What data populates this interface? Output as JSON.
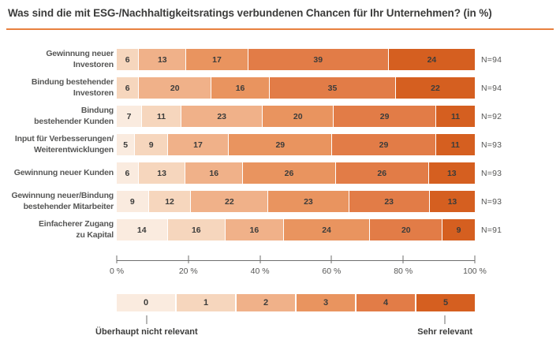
{
  "title": "Was sind die mit ESG-/Nachhaltigkeitsratings verbundenen Chancen für Ihr Unternehmen? (in %)",
  "colors": {
    "accent_rule": "#e8803f",
    "title_text": "#3c3c3b",
    "label_text": "#575756",
    "axis": "#6f6f6e",
    "scale_palette": [
      "#faebdf",
      "#f6d6bd",
      "#f0b189",
      "#e9945f",
      "#e27c47",
      "#d55f20"
    ]
  },
  "chart_data": {
    "type": "bar",
    "variant": "stacked-horizontal",
    "unit": "%",
    "title": "Was sind die mit ESG-/Nachhaltigkeitsratings verbundenen Chancen für Ihr Unternehmen? (in %)",
    "xlabel": "",
    "ylabel": "",
    "x_axis": {
      "range": [
        0,
        100
      ],
      "tick_labels": [
        "0 %",
        "20 %",
        "40 %",
        "60 %",
        "80 %",
        "100 %"
      ]
    },
    "rows": [
      {
        "label_lines": [
          "Gewinnung neuer",
          "Investoren"
        ],
        "n_label": "N=94",
        "segments": [
          {
            "scale": 1,
            "value": 6
          },
          {
            "scale": 2,
            "value": 13
          },
          {
            "scale": 3,
            "value": 17
          },
          {
            "scale": 4,
            "value": 39
          },
          {
            "scale": 5,
            "value": 24
          }
        ]
      },
      {
        "label_lines": [
          "Bindung bestehender",
          "Investoren"
        ],
        "n_label": "N=94",
        "segments": [
          {
            "scale": 1,
            "value": 6
          },
          {
            "scale": 2,
            "value": 20
          },
          {
            "scale": 3,
            "value": 16
          },
          {
            "scale": 4,
            "value": 35
          },
          {
            "scale": 5,
            "value": 22
          }
        ]
      },
      {
        "label_lines": [
          "Bindung",
          "bestehender Kunden"
        ],
        "n_label": "N=92",
        "segments": [
          {
            "scale": 0,
            "value": 7
          },
          {
            "scale": 1,
            "value": 11
          },
          {
            "scale": 2,
            "value": 23
          },
          {
            "scale": 3,
            "value": 20
          },
          {
            "scale": 4,
            "value": 29
          },
          {
            "scale": 5,
            "value": 11
          }
        ]
      },
      {
        "label_lines": [
          "Input für Verbesserungen/",
          "Weiterentwicklungen"
        ],
        "n_label": "N=93",
        "segments": [
          {
            "scale": 0,
            "value": 5
          },
          {
            "scale": 1,
            "value": 9
          },
          {
            "scale": 2,
            "value": 17
          },
          {
            "scale": 3,
            "value": 29
          },
          {
            "scale": 4,
            "value": 29
          },
          {
            "scale": 5,
            "value": 11
          }
        ]
      },
      {
        "label_lines": [
          "Gewinnung neuer Kunden"
        ],
        "n_label": "N=93",
        "segments": [
          {
            "scale": 0,
            "value": 6
          },
          {
            "scale": 1,
            "value": 13
          },
          {
            "scale": 2,
            "value": 16
          },
          {
            "scale": 3,
            "value": 26
          },
          {
            "scale": 4,
            "value": 26
          },
          {
            "scale": 5,
            "value": 13
          }
        ]
      },
      {
        "label_lines": [
          "Gewinnung neuer/Bindung",
          "bestehender Mitarbeiter"
        ],
        "n_label": "N=93",
        "segments": [
          {
            "scale": 0,
            "value": 9
          },
          {
            "scale": 1,
            "value": 12
          },
          {
            "scale": 2,
            "value": 22
          },
          {
            "scale": 3,
            "value": 23
          },
          {
            "scale": 4,
            "value": 23
          },
          {
            "scale": 5,
            "value": 13
          }
        ]
      },
      {
        "label_lines": [
          "Einfacherer Zugang",
          "zu Kapital"
        ],
        "n_label": "N=91",
        "segments": [
          {
            "scale": 0,
            "value": 14
          },
          {
            "scale": 1,
            "value": 16
          },
          {
            "scale": 2,
            "value": 16
          },
          {
            "scale": 3,
            "value": 24
          },
          {
            "scale": 4,
            "value": 20
          },
          {
            "scale": 5,
            "value": 9
          }
        ]
      }
    ],
    "legend": {
      "items": [
        {
          "label": "0",
          "color": "#faebdf"
        },
        {
          "label": "1",
          "color": "#f6d6bd"
        },
        {
          "label": "2",
          "color": "#f0b189"
        },
        {
          "label": "3",
          "color": "#e9945f"
        },
        {
          "label": "4",
          "color": "#e27c47"
        },
        {
          "label": "5",
          "color": "#d55f20"
        }
      ],
      "min_label": "Überhaupt nicht relevant",
      "max_label": "Sehr relevant"
    }
  }
}
